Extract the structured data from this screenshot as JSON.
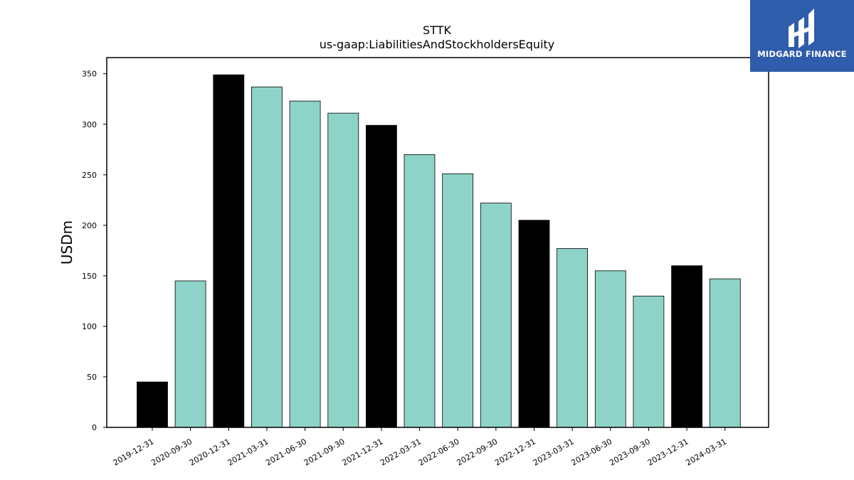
{
  "brand": {
    "name": "MIDGARD FINANCE",
    "bg_color": "#2f5cab"
  },
  "chart_data": {
    "type": "bar",
    "title": "STTK",
    "subtitle": "us-gaap:LiabilitiesAndStockholdersEquity",
    "ylabel": "USDm",
    "xlabel": "",
    "ylim": [
      0,
      366
    ],
    "yticks": [
      0,
      50,
      100,
      150,
      200,
      250,
      300,
      350
    ],
    "grid": false,
    "categories": [
      "2019-12-31",
      "2020-09-30",
      "2020-12-31",
      "2021-03-31",
      "2021-06-30",
      "2021-09-30",
      "2021-12-31",
      "2022-03-31",
      "2022-06-30",
      "2022-09-30",
      "2022-12-31",
      "2023-03-31",
      "2023-06-30",
      "2023-09-30",
      "2023-12-31",
      "2024-03-31"
    ],
    "values": [
      45,
      145,
      349,
      337,
      323,
      311,
      299,
      270,
      251,
      222,
      205,
      177,
      155,
      130,
      160,
      147
    ],
    "bar_colors": [
      "#000000",
      "#8dd3c7",
      "#000000",
      "#8dd3c7",
      "#8dd3c7",
      "#8dd3c7",
      "#000000",
      "#8dd3c7",
      "#8dd3c7",
      "#8dd3c7",
      "#000000",
      "#8dd3c7",
      "#8dd3c7",
      "#8dd3c7",
      "#000000",
      "#8dd3c7"
    ]
  }
}
